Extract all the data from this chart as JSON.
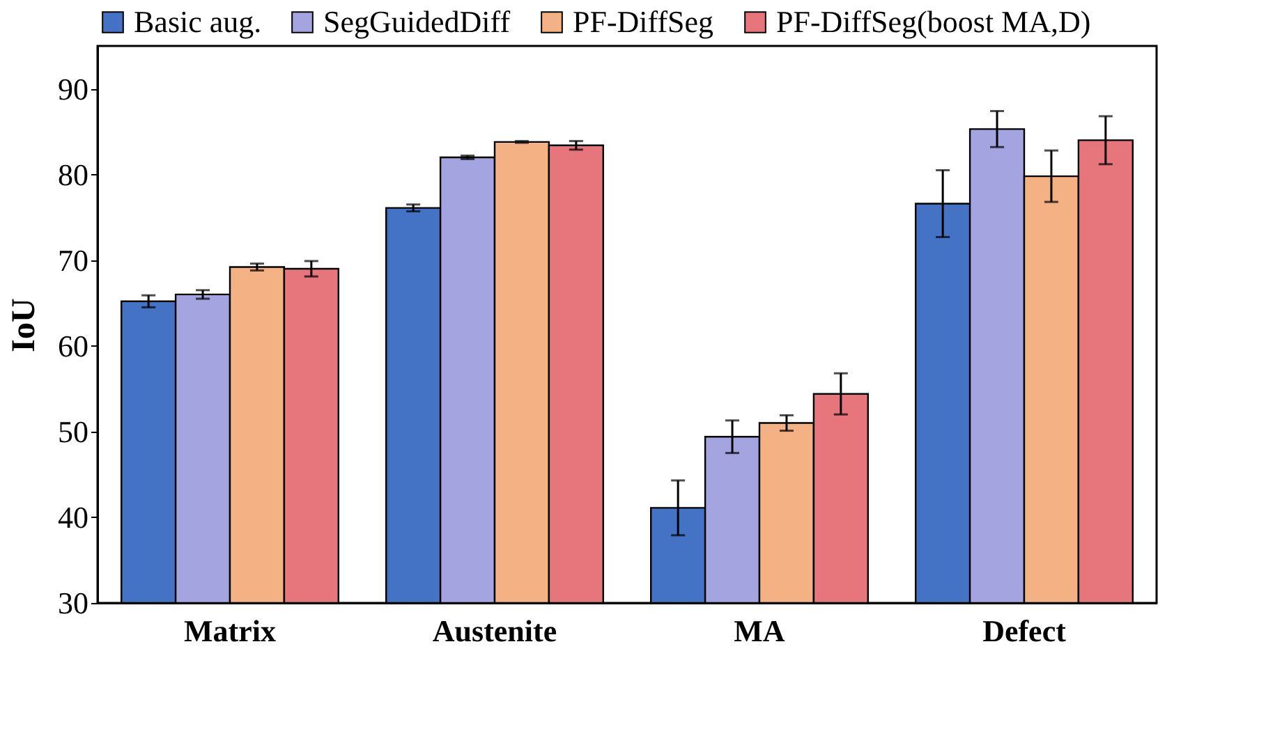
{
  "chart_data": {
    "type": "bar",
    "ylabel": "IoU",
    "categories": [
      "Matrix",
      "Austenite",
      "MA",
      "Defect"
    ],
    "series": [
      {
        "name": "Basic aug.",
        "color": "#4472c4",
        "values": [
          65.2,
          76.1,
          41.1,
          76.6
        ],
        "errors": [
          0.7,
          0.4,
          3.2,
          3.9
        ]
      },
      {
        "name": "SegGuidedDiff",
        "color": "#a4a4e0",
        "values": [
          66.0,
          82.0,
          49.4,
          85.3
        ],
        "errors": [
          0.5,
          0.2,
          1.9,
          2.1
        ]
      },
      {
        "name": "PF-DiffSeg",
        "color": "#f4b183",
        "values": [
          69.2,
          83.8,
          51.0,
          79.8
        ],
        "errors": [
          0.4,
          0.1,
          0.9,
          3.0
        ]
      },
      {
        "name": "PF-DiffSeg(boost MA,D)",
        "color": "#e6767c",
        "values": [
          69.0,
          83.4,
          54.4,
          84.0
        ],
        "errors": [
          0.9,
          0.5,
          2.4,
          2.8
        ]
      }
    ],
    "ylim": [
      30,
      95
    ],
    "yticks": [
      30,
      40,
      50,
      60,
      70,
      80,
      90
    ],
    "grid": false,
    "legend": "top"
  }
}
